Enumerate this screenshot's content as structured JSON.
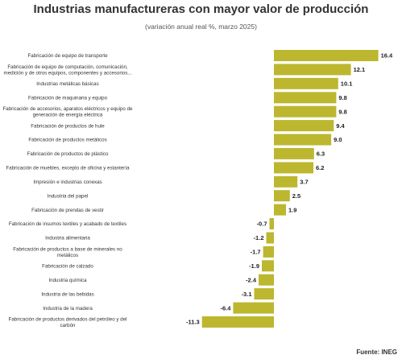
{
  "chart_data": {
    "type": "bar",
    "orientation": "horizontal",
    "title": "Industrias manufactureras con mayor valor de producción",
    "subtitle": "(variación anual real %, marzo 2025)",
    "source": "Fuente: INEG",
    "bar_color": "#bcb72f",
    "categories": [
      [
        "Fabricación de equipo de transporte"
      ],
      [
        "Fabricación de equipo de computación, comunicación,",
        "medición y de otros equipos, componentes y accesorios..."
      ],
      [
        "Industrias metálicas básicas"
      ],
      [
        "Fabricación de maquinaria y equipo"
      ],
      [
        "Fabricación de accesorios, aparatos eléctricos y equipo de",
        "generación de energía eléctrica"
      ],
      [
        "Fabricación de productos de hule"
      ],
      [
        "Fabricación de productos metálicos"
      ],
      [
        "Fabricación de productos de plástico"
      ],
      [
        "Fabricación de muebles, excepto de oficina y estantería"
      ],
      [
        "Impresión e industrias conexas"
      ],
      [
        "Industria del papel"
      ],
      [
        "Fabricación de prendas de vestir"
      ],
      [
        "Fabricación de insumos textiles y acabado de textiles"
      ],
      [
        "Industria alimentaria"
      ],
      [
        "Fabricación de productos a base de minerales no",
        "metálicos"
      ],
      [
        "Fabricación de calzado"
      ],
      [
        "Industria química"
      ],
      [
        "Industria de las bebidas"
      ],
      [
        "Industria de la madera"
      ],
      [
        "Fabricación de productos derivados del petróleo y del",
        "carbón"
      ]
    ],
    "values": [
      16.4,
      12.1,
      10.1,
      9.8,
      9.8,
      9.4,
      9.0,
      6.3,
      6.2,
      3.7,
      2.5,
      1.9,
      -0.7,
      -1.2,
      -1.7,
      -1.9,
      -2.4,
      -3.1,
      -6.4,
      -11.3
    ],
    "value_labels": [
      "16.4",
      "12.1",
      "10.1",
      "9.8",
      "9.8",
      "9.4",
      "9.0",
      "6.3",
      "6.2",
      "3.7",
      "2.5",
      "1.9",
      "-0.7",
      "-1.2",
      "-1.7",
      "-1.9",
      "-2.4",
      "-3.1",
      "-6.4",
      "-11.3"
    ]
  }
}
